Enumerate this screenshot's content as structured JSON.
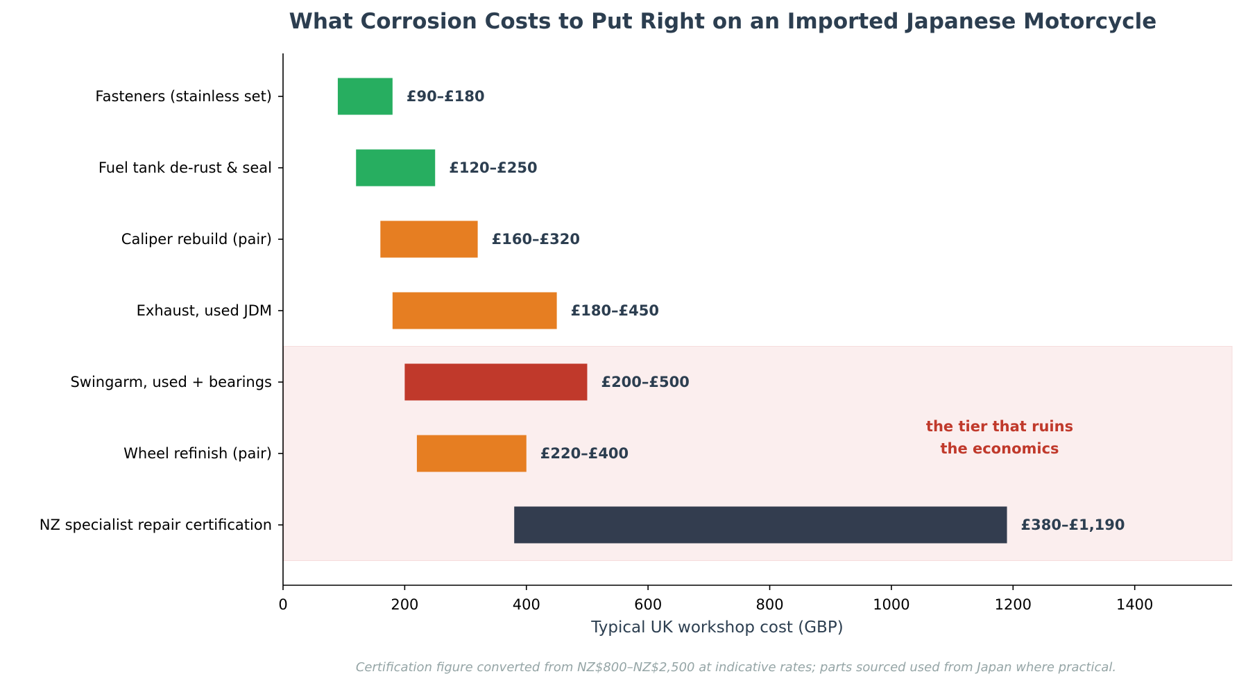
{
  "chart_data": {
    "type": "bar",
    "orientation": "horizontal",
    "title": "What Corrosion Costs to Put Right on an Imported Japanese Motorcycle",
    "xlabel": "Typical UK workshop cost (GBP)",
    "ylabel": "",
    "xlim": [
      0,
      1560
    ],
    "xticks": [
      0,
      200,
      400,
      600,
      800,
      1000,
      1200,
      1400
    ],
    "grid": false,
    "bars": [
      {
        "category": "Fasteners (stainless set)",
        "low": 90,
        "high": 180,
        "label": "£90–£180",
        "color": "#27ae60"
      },
      {
        "category": "Fuel tank de-rust & seal",
        "low": 120,
        "high": 250,
        "label": "£120–£250",
        "color": "#27ae60"
      },
      {
        "category": "Caliper rebuild (pair)",
        "low": 160,
        "high": 320,
        "label": "£160–£320",
        "color": "#e67e22"
      },
      {
        "category": "Exhaust, used JDM",
        "low": 180,
        "high": 450,
        "label": "£180–£450",
        "color": "#e67e22"
      },
      {
        "category": "Swingarm, used + bearings",
        "low": 200,
        "high": 500,
        "label": "£200–£500",
        "color": "#c0392b"
      },
      {
        "category": "Wheel refinish (pair)",
        "low": 220,
        "high": 400,
        "label": "£220–£400",
        "color": "#e67e22"
      },
      {
        "category": "NZ specialist repair certification",
        "low": 380,
        "high": 1190,
        "label": "£380–£1,190",
        "color": "#333d4f"
      }
    ],
    "highlight": {
      "from_category_index": 4,
      "to_category_index": 6,
      "color": "#fbeeee",
      "annotation_lines": [
        "the tier that ruins",
        "the economics"
      ],
      "annotation_color": "#c0392b"
    },
    "footnote": "Certification figure converted from NZ$800–NZ$2,500 at indicative rates; parts sourced used from Japan where practical."
  }
}
